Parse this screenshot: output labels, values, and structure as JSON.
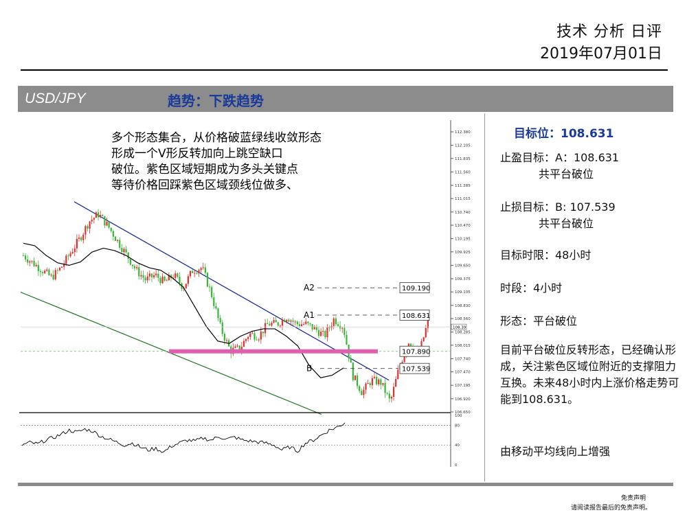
{
  "header": {
    "title": "技术 分析 日评",
    "date": "2019年07月01日"
  },
  "titlebar": {
    "pair": "USD/JPY",
    "trend": "趋势：下跌趋势"
  },
  "annotation": {
    "lines": [
      "多个形态集合，从价格破蓝绿线收敛形态",
      "形成一个V形反转加向上跳空缺口",
      "破位。紫色区域短期成为多头关键点",
      "等待价格回踩紫色区域颈线位做多、"
    ]
  },
  "panel": {
    "target": "目标位：108.631",
    "take_profit": "止盈目标：A：108.631",
    "take_profit_note": "共平台破位",
    "stop_loss": "止损目标：B: 107.539",
    "stop_loss_note": "共平台破位",
    "time_limit": "目标时限：48小时",
    "timeframe": "时段：4小时",
    "pattern": "形态：平台破位",
    "description": "目前平台破位反转形态，已经确认形成，关注紫色区域位附近的支撑阻力互换。未来48小时内上涨价格走势可能到108.631。",
    "ma_note": "由移动平均线向上增强"
  },
  "disclaimer": {
    "title": "免责声明",
    "text": "请阅读报告最后的免责声明。"
  },
  "colors": {
    "bar_gray": "#8c8c8c",
    "trend_blue": "#1a3a9a",
    "candle_up": "#e03030",
    "candle_down": "#33b833",
    "ma_line": "#000000",
    "upper_trendline": "#1f2c9c",
    "lower_trendline": "#2a7d2a",
    "support_zone": "#e060b0"
  },
  "chart_data": {
    "type": "candlestick",
    "instrument": "USD/JPY",
    "timeframe": "4小时",
    "y_ticks": [
      "112.380",
      "112.105",
      "111.835",
      "111.560",
      "111.285",
      "111.015",
      "110.740",
      "110.470",
      "110.195",
      "109.925",
      "109.650",
      "109.375",
      "109.105",
      "108.830",
      "108.560",
      "108.285",
      "108.015",
      "107.740",
      "107.470",
      "107.195",
      "106.920",
      "106.650"
    ],
    "ylim": [
      106.65,
      112.38
    ],
    "levels": [
      {
        "name": "A2",
        "value": "109.190"
      },
      {
        "name": "A1",
        "value": "108.631"
      },
      {
        "name": "",
        "value": "107.890"
      },
      {
        "name": "B",
        "value": "107.539"
      }
    ],
    "price_tag": "108.39",
    "close_path": [
      109.85,
      109.7,
      109.55,
      109.4,
      109.6,
      109.9,
      110.2,
      110.55,
      110.7,
      110.45,
      110.15,
      109.85,
      109.55,
      109.35,
      109.45,
      109.3,
      109.45,
      109.2,
      109.55,
      109.6,
      109.05,
      108.35,
      107.9,
      107.95,
      108.25,
      108.2,
      108.45,
      108.45,
      108.6,
      108.45,
      108.45,
      108.35,
      108.2,
      108.55,
      108.4,
      107.4,
      107.05,
      107.3,
      107.25,
      106.85,
      107.6,
      108.1,
      107.8,
      108.5
    ],
    "ma_path": [
      110.1,
      110.05,
      109.85,
      109.7,
      109.65,
      109.72,
      109.92,
      110.0,
      109.95,
      109.85,
      109.7,
      109.6,
      109.55,
      109.4,
      109.2,
      108.8,
      108.4,
      108.1,
      108.05,
      108.2,
      108.3,
      108.35,
      108.35,
      108.2,
      108.0,
      107.6,
      107.35,
      107.4,
      107.55
    ],
    "upper_trendline": [
      [
        0,
        110.95
      ],
      [
        1,
        107.3
      ]
    ],
    "lower_trendline": [
      [
        0,
        109.1
      ],
      [
        1,
        106.6
      ]
    ],
    "oscillator": {
      "y_ticks": [
        "100",
        "80",
        "40",
        "0"
      ],
      "ylim": [
        0,
        100
      ],
      "values": [
        40,
        45,
        42,
        50,
        55,
        62,
        70,
        66,
        72,
        68,
        58,
        52,
        46,
        40,
        44,
        36,
        30,
        33,
        26,
        38,
        44,
        50,
        48,
        54,
        50,
        57,
        52,
        56,
        50,
        48,
        46,
        44,
        40,
        30,
        36,
        28,
        44,
        50,
        60,
        70,
        76,
        85
      ]
    }
  }
}
